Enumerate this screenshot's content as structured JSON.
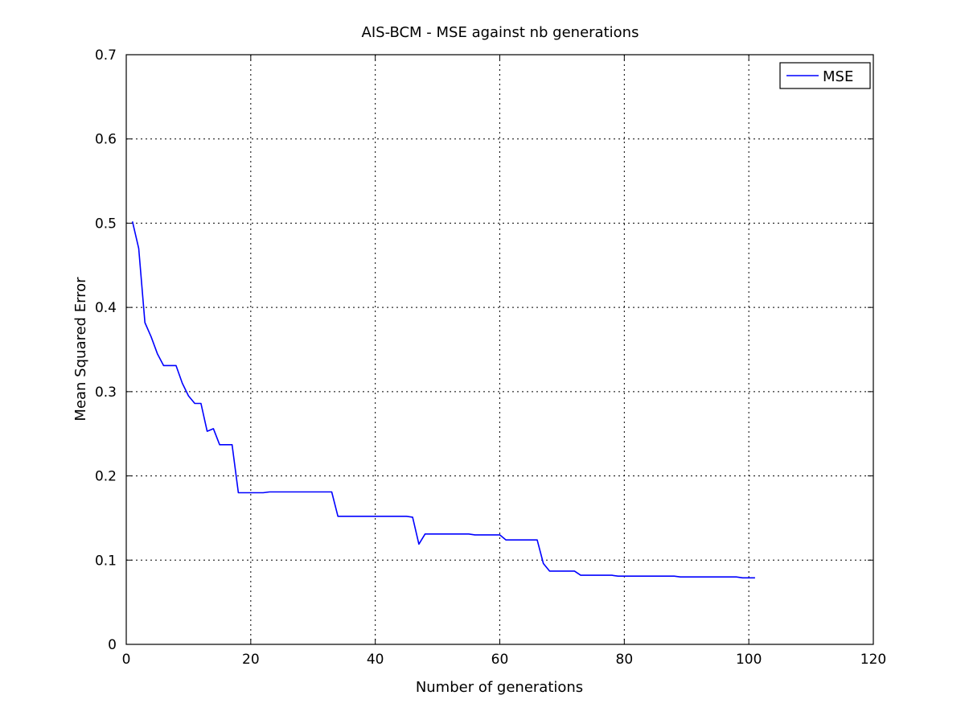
{
  "chart_data": {
    "type": "line",
    "title": "AIS-BCM - MSE against nb generations",
    "xlabel": "Number of generations",
    "ylabel": "Mean Squared Error",
    "xlim": [
      0,
      120
    ],
    "ylim": [
      0,
      0.7
    ],
    "xticks": [
      0,
      20,
      40,
      60,
      80,
      100,
      120
    ],
    "yticks": [
      0,
      0.1,
      0.2,
      0.3,
      0.4,
      0.5,
      0.6,
      0.7
    ],
    "grid": true,
    "legend": {
      "position": "top-right",
      "entries": [
        "MSE"
      ]
    },
    "series": [
      {
        "name": "MSE",
        "color": "#0000ff",
        "x": [
          1,
          2,
          3,
          4,
          5,
          6,
          7,
          8,
          9,
          10,
          11,
          12,
          13,
          14,
          15,
          16,
          17,
          18,
          22,
          23,
          33,
          34,
          45,
          46,
          47,
          48,
          55,
          56,
          60,
          61,
          66,
          67,
          68,
          72,
          73,
          78,
          79,
          83,
          84,
          88,
          89,
          98,
          99,
          101
        ],
        "y": [
          0.502,
          0.47,
          0.382,
          0.365,
          0.345,
          0.331,
          0.331,
          0.331,
          0.31,
          0.295,
          0.286,
          0.286,
          0.253,
          0.256,
          0.237,
          0.237,
          0.237,
          0.18,
          0.18,
          0.181,
          0.181,
          0.152,
          0.152,
          0.151,
          0.119,
          0.131,
          0.131,
          0.13,
          0.13,
          0.124,
          0.124,
          0.096,
          0.087,
          0.087,
          0.082,
          0.082,
          0.081,
          0.081,
          0.081,
          0.081,
          0.08,
          0.08,
          0.079,
          0.079
        ]
      }
    ]
  }
}
